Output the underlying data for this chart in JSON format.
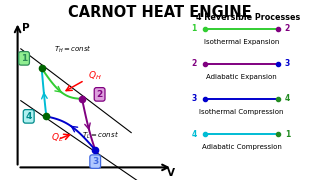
{
  "title": "CARNOT HEAT ENGINE",
  "background_color": "#ffffff",
  "points": {
    "1": [
      0.155,
      0.68
    ],
    "2": [
      0.415,
      0.47
    ],
    "3": [
      0.5,
      0.12
    ],
    "4": [
      0.185,
      0.35
    ]
  },
  "point_colors": {
    "1": "#006400",
    "2": "#800080",
    "3": "#0000cd",
    "4": "#006400"
  },
  "TH_label": "T_H = const",
  "TL_label": "T_L = const",
  "legend_title": "4 Reversible Processes",
  "legend_items": [
    {
      "label": "Isothermal Expansion",
      "num1": "1",
      "num2": "2",
      "c1": "#32cd32",
      "c2": "#800080",
      "lc": "#32cd32"
    },
    {
      "label": "Adiabatic Expansion",
      "num1": "2",
      "num2": "3",
      "c1": "#800080",
      "c2": "#0000cd",
      "lc": "#800080"
    },
    {
      "label": "Isothermal Compression",
      "num1": "3",
      "num2": "4",
      "c1": "#0000cd",
      "c2": "#228b22",
      "lc": "#0000cd"
    },
    {
      "label": "Adiabatic Compression",
      "num1": "4",
      "num2": "1",
      "c1": "#00bcd4",
      "c2": "#228b22",
      "lc": "#00bcd4"
    }
  ],
  "curve_colors": [
    "#32cd32",
    "#800080",
    "#0000cd",
    "#00bcd4"
  ],
  "box_colors": {
    "1": {
      "fg": "#2e8b57",
      "bg": "#90ee90"
    },
    "2": {
      "fg": "#800080",
      "bg": "#dda0dd"
    },
    "3": {
      "fg": "#4169e1",
      "bg": "#b0c8ff"
    },
    "4": {
      "fg": "#008b8b",
      "bg": "#b0f0f0"
    }
  }
}
